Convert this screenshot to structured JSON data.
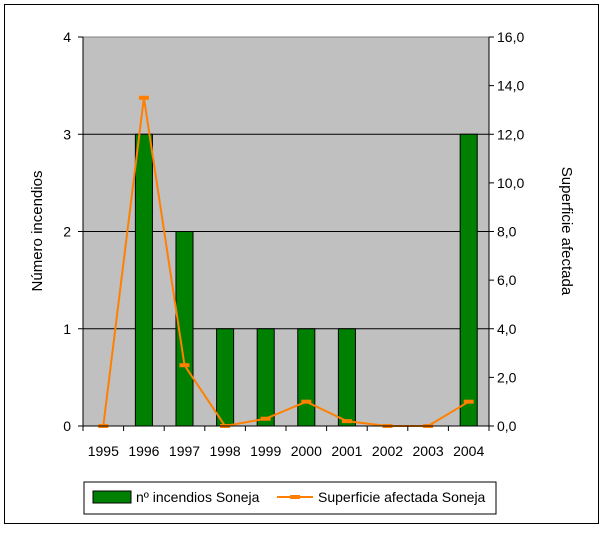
{
  "chart_data": {
    "type": "bar+line",
    "categories": [
      "1995",
      "1996",
      "1997",
      "1998",
      "1999",
      "2000",
      "2001",
      "2002",
      "2003",
      "2004"
    ],
    "series": [
      {
        "name": "nº incendios Soneja",
        "type": "bar",
        "axis": "left",
        "values": [
          0,
          3,
          2,
          1,
          1,
          1,
          1,
          0,
          0,
          3
        ],
        "color": "#008000"
      },
      {
        "name": "Superficie afectada Soneja",
        "type": "line",
        "axis": "right",
        "values": [
          0.0,
          13.5,
          2.5,
          0.0,
          0.3,
          1.0,
          0.2,
          0.0,
          0.0,
          1.0
        ],
        "color": "#ff8000"
      }
    ],
    "ylabel": "Número incendios",
    "y2label": "Superficie afectada",
    "ylim": [
      0,
      4
    ],
    "y2lim": [
      0,
      16
    ],
    "yticks": [
      "0",
      "1",
      "2",
      "3",
      "4"
    ],
    "y2ticks": [
      "0,0",
      "2,0",
      "4,0",
      "6,0",
      "8,0",
      "10,0",
      "12,0",
      "14,0",
      "16,0"
    ],
    "grid": true,
    "plot_background": "#c0c0c0",
    "legend_position": "bottom"
  }
}
